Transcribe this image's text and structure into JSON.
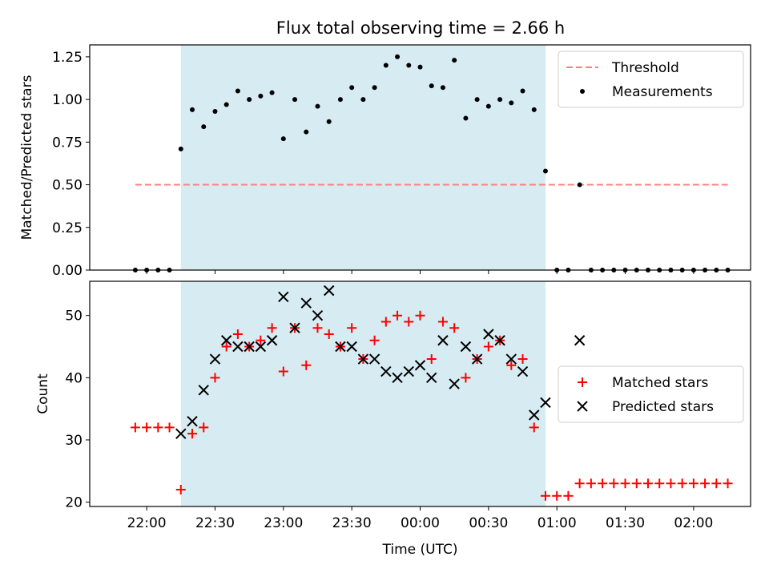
{
  "colors": {
    "span": "#add8e6",
    "threshold": "#ff7f7f",
    "measurement": "#000000",
    "matched": "#ff0000",
    "predicted": "#000000"
  },
  "chart_data": [
    {
      "type": "scatter",
      "title": "Flux total observing time = 2.66 h",
      "xlabel": "",
      "ylabel": "Matched/Predicted stars",
      "ylim": [
        0,
        1.32
      ],
      "yticks": [
        "0.00",
        "0.25",
        "0.50",
        "0.75",
        "1.00",
        "1.25"
      ],
      "x_range_minutes": [
        "21:35",
        "02:25"
      ],
      "xticks": [
        "22:00",
        "22:30",
        "23:00",
        "23:30",
        "00:00",
        "00:30",
        "01:00",
        "01:30",
        "02:00"
      ],
      "observing_window": [
        "22:15",
        "00:55"
      ],
      "threshold": {
        "name": "Threshold",
        "value": 0.5,
        "from": "21:55",
        "to": "02:15",
        "style": "dashed"
      },
      "legend_position": "upper right",
      "series": [
        {
          "name": "Measurements",
          "marker": "dot",
          "points": [
            [
              "21:55",
              0
            ],
            [
              "22:00",
              0
            ],
            [
              "22:05",
              0
            ],
            [
              "22:10",
              0
            ],
            [
              "22:15",
              0.71
            ],
            [
              "22:20",
              0.94
            ],
            [
              "22:25",
              0.84
            ],
            [
              "22:30",
              0.93
            ],
            [
              "22:35",
              0.97
            ],
            [
              "22:40",
              1.05
            ],
            [
              "22:45",
              1.0
            ],
            [
              "22:50",
              1.02
            ],
            [
              "22:55",
              1.04
            ],
            [
              "23:00",
              0.77
            ],
            [
              "23:05",
              1.0
            ],
            [
              "23:10",
              0.81
            ],
            [
              "23:15",
              0.96
            ],
            [
              "23:20",
              0.87
            ],
            [
              "23:25",
              1.0
            ],
            [
              "23:30",
              1.07
            ],
            [
              "23:35",
              1.0
            ],
            [
              "23:40",
              1.07
            ],
            [
              "23:45",
              1.2
            ],
            [
              "23:50",
              1.25
            ],
            [
              "23:55",
              1.2
            ],
            [
              "00:00",
              1.19
            ],
            [
              "00:05",
              1.08
            ],
            [
              "00:10",
              1.07
            ],
            [
              "00:15",
              1.23
            ],
            [
              "00:20",
              0.89
            ],
            [
              "00:25",
              1.0
            ],
            [
              "00:30",
              0.96
            ],
            [
              "00:35",
              1.0
            ],
            [
              "00:40",
              0.98
            ],
            [
              "00:45",
              1.05
            ],
            [
              "00:50",
              0.94
            ],
            [
              "00:55",
              0.58
            ],
            [
              "01:00",
              0
            ],
            [
              "01:05",
              0
            ],
            [
              "01:10",
              0.5
            ],
            [
              "01:15",
              0
            ],
            [
              "01:20",
              0
            ],
            [
              "01:25",
              0
            ],
            [
              "01:30",
              0
            ],
            [
              "01:35",
              0
            ],
            [
              "01:40",
              0
            ],
            [
              "01:45",
              0
            ],
            [
              "01:50",
              0
            ],
            [
              "01:55",
              0
            ],
            [
              "02:00",
              0
            ],
            [
              "02:05",
              0
            ],
            [
              "02:10",
              0
            ],
            [
              "02:15",
              0
            ]
          ]
        }
      ]
    },
    {
      "type": "scatter",
      "title": "",
      "xlabel": "Time (UTC)",
      "ylabel": "Count",
      "ylim": [
        19.3,
        55.5
      ],
      "yticks": [
        "20",
        "30",
        "40",
        "50"
      ],
      "x_range_minutes": [
        "21:35",
        "02:25"
      ],
      "xticks": [
        "22:00",
        "22:30",
        "23:00",
        "23:30",
        "00:00",
        "00:30",
        "01:00",
        "01:30",
        "02:00"
      ],
      "observing_window": [
        "22:15",
        "00:55"
      ],
      "legend_position": "center right",
      "series": [
        {
          "name": "Matched stars",
          "marker": "plus",
          "points": [
            [
              "21:55",
              32
            ],
            [
              "22:00",
              32
            ],
            [
              "22:05",
              32
            ],
            [
              "22:10",
              32
            ],
            [
              "22:15",
              22
            ],
            [
              "22:20",
              31
            ],
            [
              "22:25",
              32
            ],
            [
              "22:30",
              40
            ],
            [
              "22:35",
              45
            ],
            [
              "22:40",
              47
            ],
            [
              "22:45",
              45
            ],
            [
              "22:50",
              46
            ],
            [
              "22:55",
              48
            ],
            [
              "23:00",
              41
            ],
            [
              "23:05",
              48
            ],
            [
              "23:10",
              42
            ],
            [
              "23:15",
              48
            ],
            [
              "23:20",
              47
            ],
            [
              "23:25",
              45
            ],
            [
              "23:30",
              48
            ],
            [
              "23:35",
              43
            ],
            [
              "23:40",
              46
            ],
            [
              "23:45",
              49
            ],
            [
              "23:50",
              50
            ],
            [
              "23:55",
              49
            ],
            [
              "00:00",
              50
            ],
            [
              "00:05",
              43
            ],
            [
              "00:10",
              49
            ],
            [
              "00:15",
              48
            ],
            [
              "00:20",
              40
            ],
            [
              "00:25",
              43
            ],
            [
              "00:30",
              45
            ],
            [
              "00:35",
              46
            ],
            [
              "00:40",
              42
            ],
            [
              "00:45",
              43
            ],
            [
              "00:50",
              32
            ],
            [
              "00:55",
              21
            ],
            [
              "01:00",
              21
            ],
            [
              "01:05",
              21
            ],
            [
              "01:10",
              23
            ],
            [
              "01:15",
              23
            ],
            [
              "01:20",
              23
            ],
            [
              "01:25",
              23
            ],
            [
              "01:30",
              23
            ],
            [
              "01:35",
              23
            ],
            [
              "01:40",
              23
            ],
            [
              "01:45",
              23
            ],
            [
              "01:50",
              23
            ],
            [
              "01:55",
              23
            ],
            [
              "02:00",
              23
            ],
            [
              "02:05",
              23
            ],
            [
              "02:10",
              23
            ],
            [
              "02:15",
              23
            ]
          ]
        },
        {
          "name": "Predicted stars",
          "marker": "x",
          "points": [
            [
              "22:15",
              31
            ],
            [
              "22:20",
              33
            ],
            [
              "22:25",
              38
            ],
            [
              "22:30",
              43
            ],
            [
              "22:35",
              46
            ],
            [
              "22:40",
              45
            ],
            [
              "22:45",
              45
            ],
            [
              "22:50",
              45
            ],
            [
              "22:55",
              46
            ],
            [
              "23:00",
              53
            ],
            [
              "23:05",
              48
            ],
            [
              "23:10",
              52
            ],
            [
              "23:15",
              50
            ],
            [
              "23:20",
              54
            ],
            [
              "23:25",
              45
            ],
            [
              "23:30",
              45
            ],
            [
              "23:35",
              43
            ],
            [
              "23:40",
              43
            ],
            [
              "23:45",
              41
            ],
            [
              "23:50",
              40
            ],
            [
              "23:55",
              41
            ],
            [
              "00:00",
              42
            ],
            [
              "00:05",
              40
            ],
            [
              "00:10",
              46
            ],
            [
              "00:15",
              39
            ],
            [
              "00:20",
              45
            ],
            [
              "00:25",
              43
            ],
            [
              "00:30",
              47
            ],
            [
              "00:35",
              46
            ],
            [
              "00:40",
              43
            ],
            [
              "00:45",
              41
            ],
            [
              "00:50",
              34
            ],
            [
              "00:55",
              36
            ],
            [
              "01:10",
              46
            ]
          ]
        }
      ]
    }
  ]
}
